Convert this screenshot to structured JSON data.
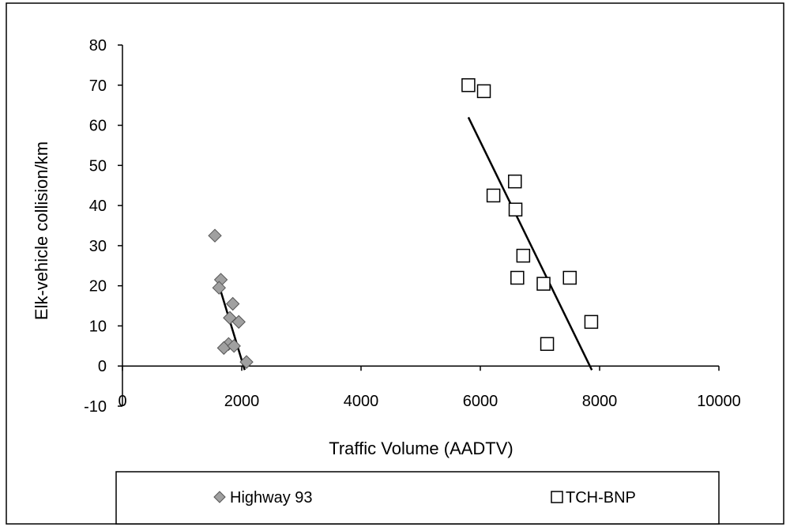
{
  "chart_data": {
    "type": "scatter",
    "xlabel": "Traffic Volume (AADTV)",
    "ylabel": "Elk-vehicle collision/km",
    "xlim": [
      0,
      10000
    ],
    "ylim": [
      -10,
      80
    ],
    "xticks": [
      0,
      2000,
      4000,
      6000,
      8000,
      10000
    ],
    "yticks": [
      -10,
      0,
      10,
      20,
      30,
      40,
      50,
      60,
      70,
      80
    ],
    "xtick_labels": [
      "0",
      "2000",
      "4000",
      "6000",
      "8000",
      "10000"
    ],
    "ytick_labels": [
      "-10",
      "0",
      "10",
      "20",
      "30",
      "40",
      "50",
      "60",
      "70",
      "80"
    ],
    "grid": false,
    "legend_position": "bottom",
    "series": [
      {
        "name": "Highway 93",
        "marker": "diamond",
        "color": "#a0a0a0",
        "points": [
          [
            1550,
            32.5
          ],
          [
            1650,
            21.5
          ],
          [
            1620,
            19.5
          ],
          [
            1850,
            15.5
          ],
          [
            1800,
            12
          ],
          [
            1950,
            11
          ],
          [
            1780,
            5.5
          ],
          [
            1700,
            4.5
          ],
          [
            1870,
            5
          ],
          [
            2080,
            1
          ]
        ],
        "trendline": [
          [
            1580,
            22
          ],
          [
            2050,
            -1
          ]
        ]
      },
      {
        "name": "TCH-BNP",
        "marker": "square",
        "color": "#ffffff",
        "points": [
          [
            5800,
            70
          ],
          [
            6060,
            68.5
          ],
          [
            6580,
            46
          ],
          [
            6220,
            42.5
          ],
          [
            6590,
            39
          ],
          [
            6720,
            27.5
          ],
          [
            6620,
            22
          ],
          [
            7060,
            20.5
          ],
          [
            7500,
            22
          ],
          [
            7860,
            11
          ],
          [
            7120,
            5.5
          ]
        ],
        "trendline": [
          [
            5800,
            62
          ],
          [
            7870,
            -1
          ]
        ]
      }
    ]
  },
  "legend": {
    "items": [
      {
        "label": "Highway 93"
      },
      {
        "label": "TCH-BNP"
      }
    ]
  }
}
